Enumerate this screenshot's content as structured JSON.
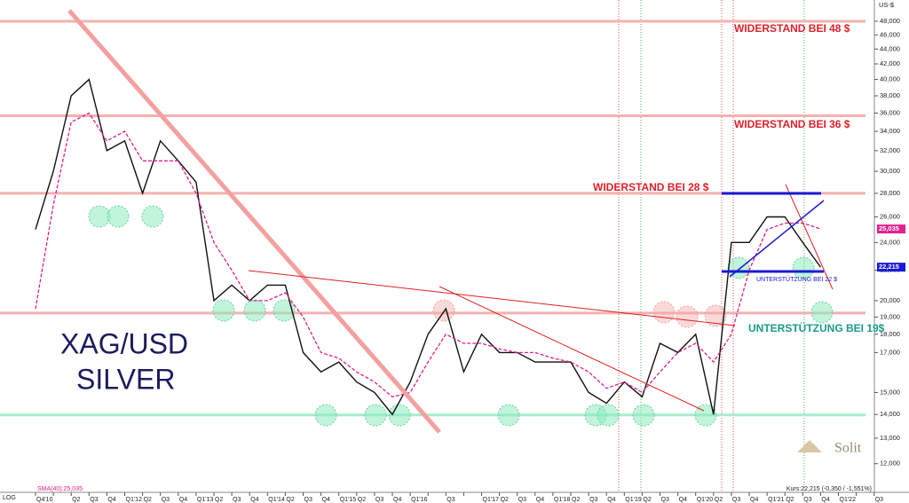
{
  "chart_data": {
    "type": "line",
    "log_scale": true,
    "title": "XAG/USD",
    "subtitle": "SILVER",
    "y_axis_label": "US-$",
    "scale_label": "LOG",
    "categories": [
      "Q4'10",
      null,
      "Q2",
      "Q3",
      "Q4",
      "Q1'12",
      "Q2",
      "Q3",
      "Q4",
      "Q1'13",
      "Q2",
      "Q3",
      "Q4",
      "Q1'14",
      "Q2",
      "Q3",
      "Q4",
      "Q1'15",
      "Q2",
      "Q3",
      "Q4",
      "Q1'16",
      null,
      "Q3",
      null,
      "Q1'17",
      "Q2",
      "Q3",
      "Q4",
      "Q1'18",
      "Q2",
      "Q3",
      "Q4",
      "Q1'19",
      "Q2",
      "Q3",
      "Q4",
      "Q1'20",
      "Q2",
      "Q3",
      "Q4",
      "Q1'21",
      "Q2",
      "Q3",
      "Q4",
      "Q1'22",
      null,
      "Q3"
    ],
    "series": [
      {
        "color": "#111111",
        "values": [
          25,
          30,
          38,
          40,
          32,
          33,
          28,
          33,
          31,
          29,
          20,
          21,
          20,
          21,
          21,
          17,
          16,
          16.5,
          15.5,
          15,
          14,
          15.5,
          18,
          19.5,
          16,
          18,
          17,
          17,
          16.5,
          16.5,
          16.5,
          15,
          14.5,
          15.5,
          14.8,
          17.5,
          17,
          18,
          14,
          24,
          24,
          26,
          26,
          24,
          22.215,
          null,
          null,
          null
        ]
      },
      {
        "color": "#e0208c",
        "dash": true,
        "values": [
          19.5,
          27,
          35,
          36,
          33,
          34,
          31,
          31,
          31,
          28,
          24,
          22,
          20,
          20,
          20.5,
          19,
          17,
          16.7,
          16,
          15.5,
          14.8,
          15,
          16.5,
          18,
          17.5,
          17.5,
          17.2,
          17,
          17,
          16.7,
          16.5,
          16,
          15.2,
          15.5,
          15,
          16,
          17,
          17.5,
          16.5,
          18,
          22,
          25,
          25.5,
          25.5,
          25.035,
          null,
          null,
          null
        ]
      }
    ],
    "ylim": [
      11,
      50.6
    ],
    "yticks": [
      {
        "value": 12,
        "label": "12,000"
      },
      {
        "value": 13,
        "label": "13,000"
      },
      {
        "value": 14,
        "label": "14,000"
      },
      {
        "value": 15,
        "label": "15,000"
      },
      {
        "value": 17,
        "label": "17,000"
      },
      {
        "value": 18,
        "label": "18,000"
      },
      {
        "value": 19,
        "label": "19,000"
      },
      {
        "value": 20,
        "label": "20,000"
      },
      {
        "value": 22,
        "label": "22,000"
      },
      {
        "value": 24,
        "label": "24,000"
      },
      {
        "value": 26,
        "label": "26,000"
      },
      {
        "value": 28,
        "label": "28,000"
      },
      {
        "value": 30,
        "label": "30,000"
      },
      {
        "value": 32,
        "label": "32,000"
      },
      {
        "value": 34,
        "label": "34,000"
      },
      {
        "value": 36,
        "label": "36,000"
      },
      {
        "value": 38,
        "label": "38,000"
      },
      {
        "value": 40,
        "label": "40,000"
      },
      {
        "value": 42,
        "label": "42,000"
      },
      {
        "value": 44,
        "label": "44,000"
      },
      {
        "value": 46,
        "label": "46,000"
      },
      {
        "value": 48,
        "label": "48,000"
      }
    ],
    "levels": [
      {
        "value": 48,
        "color": "#f7b0b0"
      },
      {
        "value": 35.7,
        "color": "#f7b0b0"
      },
      {
        "value": 28,
        "color": "#f7b0b0"
      },
      {
        "value": 19.24,
        "color": "#f7b0b0"
      },
      {
        "value": 13.98,
        "color": "#a6ecd0"
      }
    ],
    "markers": [
      {
        "value": 25.035,
        "label": "25,035",
        "color": "#e0208c"
      },
      {
        "value": 22.215,
        "label": "22,215",
        "color": "#1a1ad6"
      }
    ],
    "annotations": [
      "WIDERSTAND BEI 48 $",
      "WIDERSTAND BEI 36 $",
      "WIDERSTAND BEI 28 $",
      "UNTERSTÜTZUNG BEI 19$",
      "UNTERSTÜTZUNG BEI 22 $"
    ],
    "sma_legend": "SMA(40):25,035",
    "footer": "Kurs:22,215 (-0,350 / -1,551%)",
    "brand": "Solit"
  }
}
